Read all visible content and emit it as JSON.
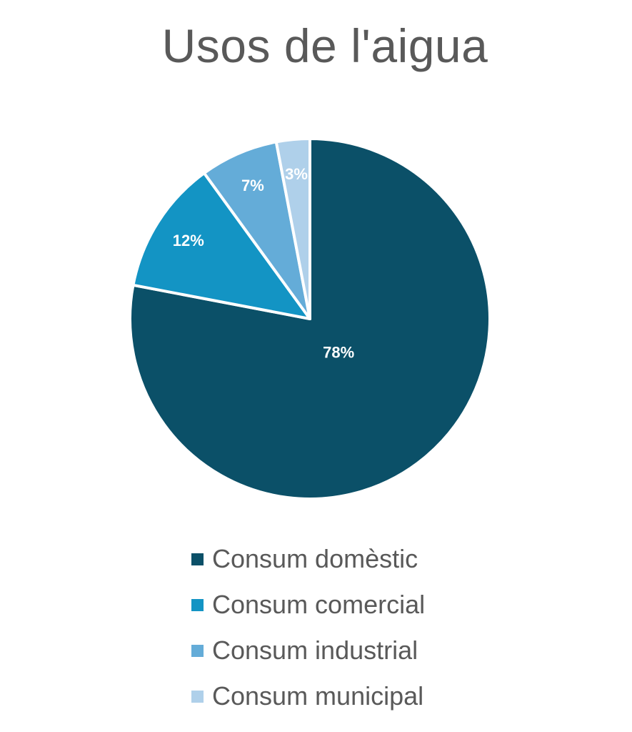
{
  "chart_data": {
    "type": "pie",
    "title": "Usos de l'aigua",
    "categories": [
      "Consum domèstic",
      "Consum comercial",
      "Consum industrial",
      "Consum municipal"
    ],
    "values": [
      78,
      12,
      7,
      3
    ],
    "data_labels": [
      "78%",
      "12%",
      "7%",
      "3%"
    ],
    "colors": [
      "#0b5068",
      "#1394c4",
      "#64acd8",
      "#afd0ea"
    ],
    "start": "12 o'clock",
    "direction": "clockwise",
    "legend": "bottom"
  }
}
